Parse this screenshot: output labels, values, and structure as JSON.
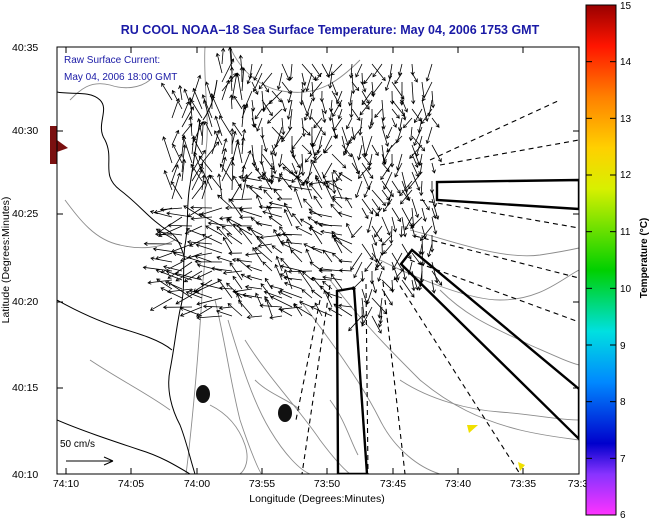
{
  "title": "RU COOL  NOAA–18  Sea Surface Temperature:  May 04, 2006 1753 GMT",
  "annotation": {
    "line1": "Raw Surface Current:",
    "line2": "May 04, 2006 18:00 GMT"
  },
  "scale_label": "50 cm/s",
  "axes": {
    "xlabel": "Longitude (Degrees:Minutes)",
    "ylabel": "Latitude (Degrees:Minutes)",
    "x_ticks": [
      "74:10",
      "74:05",
      "74:00",
      "73:55",
      "73:50",
      "73:45",
      "73:40",
      "73:35",
      "73:3"
    ],
    "y_ticks": [
      "40:35",
      "40:30",
      "40:25",
      "40:20",
      "40:15",
      "40:10"
    ]
  },
  "colorbar": {
    "label": "Temperature (°C)",
    "ticks": [
      "15",
      "14",
      "13",
      "12",
      "11",
      "10",
      "9",
      "8",
      "7",
      "6"
    ],
    "min": 6,
    "max": 15,
    "colors": [
      "#ff33ff",
      "#8833ff",
      "#0000cc",
      "#0088ff",
      "#00e0e0",
      "#00d000",
      "#d8f000",
      "#ffd000",
      "#ff8000",
      "#ff1500",
      "#990000"
    ]
  },
  "colors": {
    "title": "#1a1aa6",
    "land_marker": "#7a1010",
    "buoy": "#111111",
    "sst_patch": "#f0e000"
  }
}
